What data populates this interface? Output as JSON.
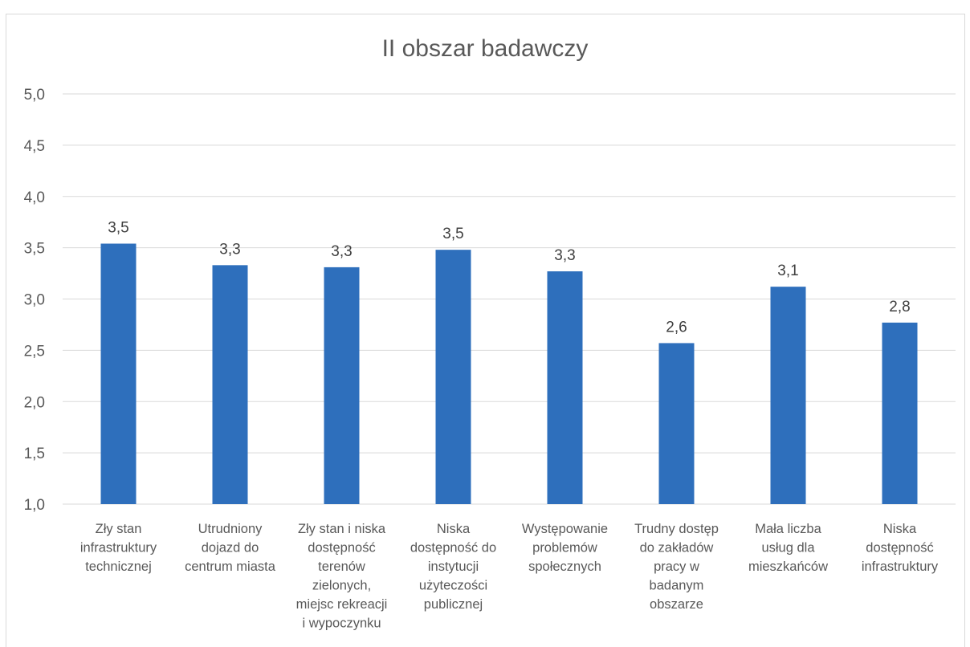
{
  "chart_data": {
    "type": "bar",
    "title": "II obszar badawczy",
    "categories": [
      "Zły stan infrastruktury technicznej",
      "Utrudniony dojazd do centrum miasta",
      "Zły stan i niska dostępność terenów zielonych, miejsc rekreacji i wypoczynku",
      "Niska dostępność do instytucji użyteczości publicznej",
      "Występowanie problemów społecznych",
      "Trudny dostęp do zakładów pracy w badanym obszarze",
      "Mała liczba usług dla mieszkańców",
      "Niska dostępność infrastruktury"
    ],
    "category_lines": [
      [
        "Zły stan",
        "infrastruktury",
        "technicznej"
      ],
      [
        "Utrudniony",
        "dojazd do",
        "centrum miasta"
      ],
      [
        "Zły stan i niska",
        "dostępność",
        "terenów",
        "zielonych,",
        "miejsc rekreacji",
        "i wypoczynku"
      ],
      [
        "Niska",
        "dostępność do",
        "instytucji",
        "użyteczości",
        "publicznej"
      ],
      [
        "Występowanie",
        "problemów",
        "społecznych"
      ],
      [
        "Trudny dostęp",
        "do zakładów",
        "pracy w",
        "badanym",
        "obszarze"
      ],
      [
        "Mała liczba",
        "usług dla",
        "mieszkańców"
      ],
      [
        "Niska",
        "dostępność",
        "infrastruktury"
      ]
    ],
    "values": [
      3.54,
      3.33,
      3.31,
      3.48,
      3.27,
      2.57,
      3.12,
      2.77
    ],
    "data_labels": [
      "3,5",
      "3,3",
      "3,3",
      "3,5",
      "3,3",
      "2,6",
      "3,1",
      "2,8"
    ],
    "ylim": [
      1.0,
      5.0
    ],
    "yticks": [
      "1,0",
      "1,5",
      "2,0",
      "2,5",
      "3,0",
      "3,5",
      "4,0",
      "4,5",
      "5,0"
    ],
    "grid": true,
    "bar_color": "#2e6fbc",
    "grid_color": "#d9d9d9"
  }
}
